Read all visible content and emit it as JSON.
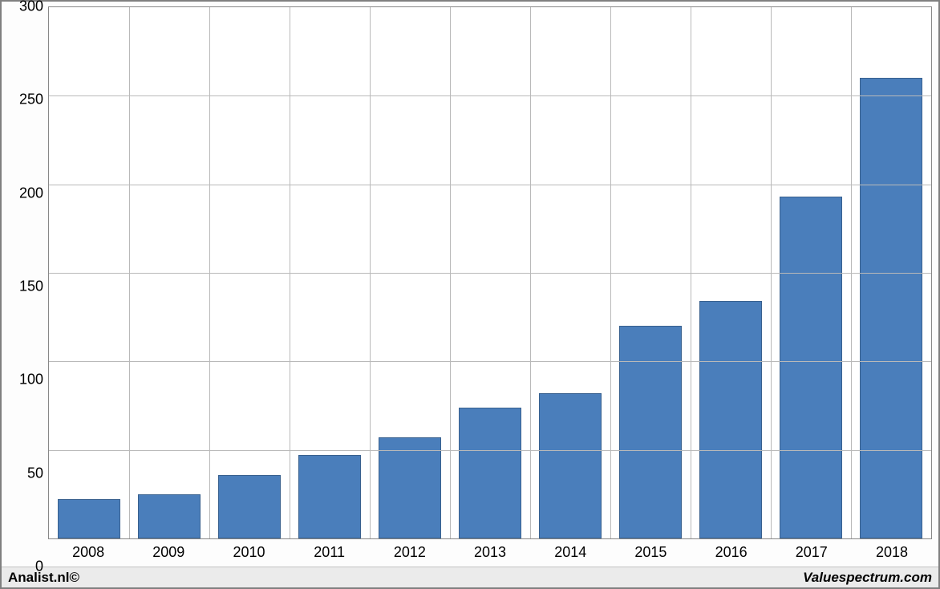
{
  "chart": {
    "type": "bar",
    "categories": [
      "2008",
      "2009",
      "2010",
      "2011",
      "2012",
      "2013",
      "2014",
      "2015",
      "2016",
      "2017",
      "2018"
    ],
    "values": [
      22,
      25,
      36,
      47,
      57,
      74,
      82,
      120,
      134,
      193,
      260
    ],
    "bar_color": "#4a7ebb",
    "bar_border_color": "#38608e",
    "bar_width_ratio": 0.78,
    "y": {
      "min": 0,
      "max": 300,
      "ticks": [
        0,
        50,
        100,
        150,
        200,
        250,
        300
      ],
      "labels": [
        "0",
        "50",
        "100",
        "150",
        "200",
        "250",
        "300"
      ]
    },
    "grid_color": "#b9b9b9",
    "plot_border_color": "#888888",
    "background_color": "#ffffff",
    "frame_border_color": "#808080",
    "label_fontsize": 18,
    "label_color": "#000000"
  },
  "footer": {
    "left": "Analist.nl©",
    "right": "Valuespectrum.com",
    "bg": "#ebebeb"
  }
}
